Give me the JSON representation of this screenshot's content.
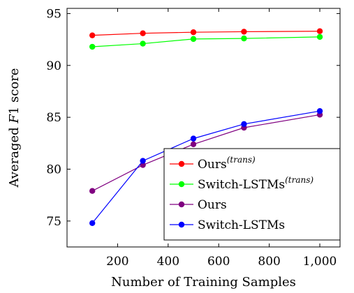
{
  "chart_data": {
    "type": "line",
    "xlabel": "Number of Training Samples",
    "ylabel_prefix": "Averaged ",
    "ylabel_var": "F",
    "ylabel_suffix": "1 score",
    "xlim": [
      0,
      1080
    ],
    "ylim": [
      72.5,
      95.5
    ],
    "xticks": [
      200,
      400,
      600,
      800,
      1000
    ],
    "xtick_labels": [
      "200",
      "400",
      "600",
      "800",
      "1,000"
    ],
    "yticks": [
      75,
      80,
      85,
      90,
      95
    ],
    "ytick_labels": [
      "75",
      "80",
      "85",
      "90",
      "95"
    ],
    "grid": false,
    "legend_position": "lower-right",
    "series": [
      {
        "name": "Ours",
        "sup": "(trans)",
        "color": "#ff0000",
        "x": [
          100,
          300,
          500,
          700,
          1000
        ],
        "y": [
          92.9,
          93.1,
          93.2,
          93.25,
          93.3
        ]
      },
      {
        "name": "Switch-LSTMs",
        "sup": "(trans)",
        "color": "#00ff00",
        "x": [
          100,
          300,
          500,
          700,
          1000
        ],
        "y": [
          91.8,
          92.1,
          92.55,
          92.6,
          92.75
        ]
      },
      {
        "name": "Ours",
        "sup": "",
        "color": "#800080",
        "x": [
          100,
          300,
          500,
          700,
          1000
        ],
        "y": [
          77.9,
          80.4,
          82.4,
          84.0,
          85.25
        ]
      },
      {
        "name": "Switch-LSTMs",
        "sup": "",
        "color": "#0000ff",
        "x": [
          100,
          300,
          500,
          700,
          1000
        ],
        "y": [
          74.8,
          80.8,
          82.95,
          84.35,
          85.6
        ]
      }
    ]
  }
}
